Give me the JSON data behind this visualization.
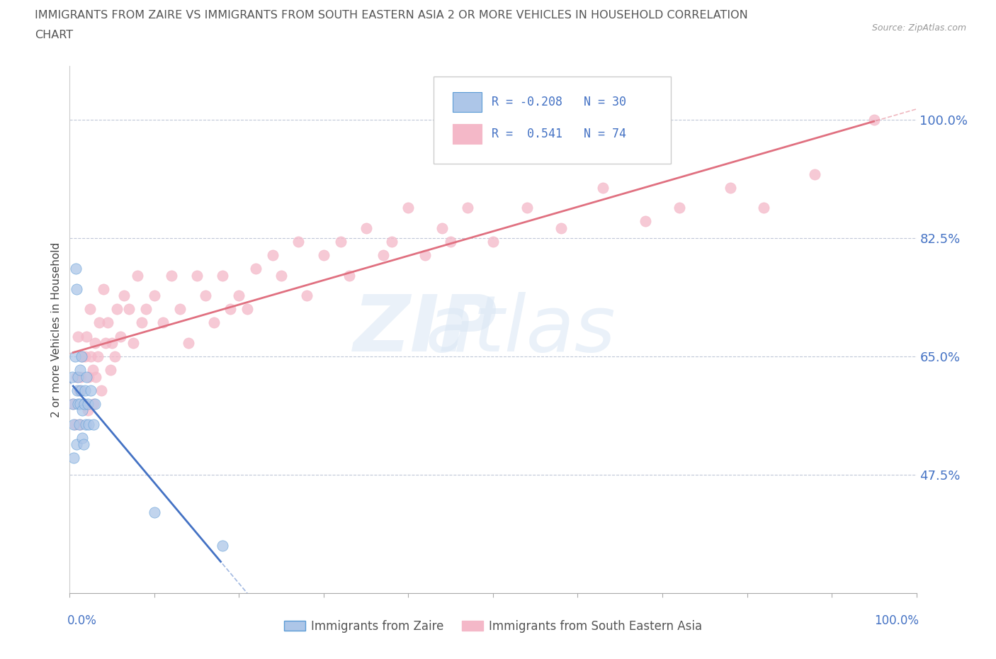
{
  "title_line1": "IMMIGRANTS FROM ZAIRE VS IMMIGRANTS FROM SOUTH EASTERN ASIA 2 OR MORE VEHICLES IN HOUSEHOLD CORRELATION",
  "title_line2": "CHART",
  "source": "Source: ZipAtlas.com",
  "ylabel": "2 or more Vehicles in Household",
  "yticks": [
    47.5,
    65.0,
    82.5,
    100.0
  ],
  "ytick_labels": [
    "47.5%",
    "65.0%",
    "82.5%",
    "100.0%"
  ],
  "xmin": 0.0,
  "xmax": 100.0,
  "ymin": 30.0,
  "ymax": 108.0,
  "series": [
    {
      "name": "Immigrants from Zaire",
      "color": "#adc6e8",
      "edge_color": "#5b9bd5",
      "R": -0.208,
      "N": 30,
      "line_color": "#4472c4",
      "x": [
        0.3,
        0.4,
        0.5,
        0.5,
        0.6,
        0.7,
        0.8,
        0.8,
        0.9,
        1.0,
        1.0,
        1.1,
        1.2,
        1.2,
        1.3,
        1.4,
        1.5,
        1.5,
        1.6,
        1.7,
        1.8,
        1.9,
        2.0,
        2.1,
        2.2,
        2.5,
        2.8,
        3.0,
        10.0,
        18.0
      ],
      "y": [
        62.0,
        58.0,
        55.0,
        50.0,
        65.0,
        78.0,
        75.0,
        52.0,
        60.0,
        62.0,
        58.0,
        55.0,
        63.0,
        58.0,
        60.0,
        65.0,
        57.0,
        53.0,
        52.0,
        58.0,
        60.0,
        55.0,
        62.0,
        58.0,
        55.0,
        60.0,
        55.0,
        58.0,
        42.0,
        37.0
      ]
    },
    {
      "name": "Immigrants from South Eastern Asia",
      "color": "#f4b8c8",
      "edge_color": "#f4b8c8",
      "R": 0.541,
      "N": 74,
      "line_color": "#e07080",
      "x": [
        0.4,
        0.6,
        0.8,
        1.0,
        1.1,
        1.2,
        1.3,
        1.5,
        1.6,
        1.8,
        2.0,
        2.1,
        2.2,
        2.4,
        2.5,
        2.7,
        2.8,
        3.0,
        3.1,
        3.3,
        3.5,
        3.7,
        4.0,
        4.2,
        4.5,
        4.8,
        5.0,
        5.3,
        5.6,
        6.0,
        6.4,
        7.0,
        7.5,
        8.0,
        8.5,
        9.0,
        10.0,
        11.0,
        12.0,
        13.0,
        14.0,
        15.0,
        16.0,
        17.0,
        18.0,
        19.0,
        20.0,
        21.0,
        22.0,
        24.0,
        25.0,
        27.0,
        28.0,
        30.0,
        32.0,
        33.0,
        35.0,
        37.0,
        38.0,
        40.0,
        42.0,
        44.0,
        45.0,
        47.0,
        50.0,
        54.0,
        58.0,
        63.0,
        68.0,
        72.0,
        78.0,
        82.0,
        88.0,
        95.0
      ],
      "y": [
        58.0,
        55.0,
        62.0,
        68.0,
        60.0,
        55.0,
        62.0,
        65.0,
        58.0,
        65.0,
        68.0,
        57.0,
        62.0,
        72.0,
        65.0,
        63.0,
        58.0,
        67.0,
        62.0,
        65.0,
        70.0,
        60.0,
        75.0,
        67.0,
        70.0,
        63.0,
        67.0,
        65.0,
        72.0,
        68.0,
        74.0,
        72.0,
        67.0,
        77.0,
        70.0,
        72.0,
        74.0,
        70.0,
        77.0,
        72.0,
        67.0,
        77.0,
        74.0,
        70.0,
        77.0,
        72.0,
        74.0,
        72.0,
        78.0,
        80.0,
        77.0,
        82.0,
        74.0,
        80.0,
        82.0,
        77.0,
        84.0,
        80.0,
        82.0,
        87.0,
        80.0,
        84.0,
        82.0,
        87.0,
        82.0,
        87.0,
        84.0,
        90.0,
        85.0,
        87.0,
        90.0,
        87.0,
        92.0,
        100.0
      ]
    }
  ]
}
